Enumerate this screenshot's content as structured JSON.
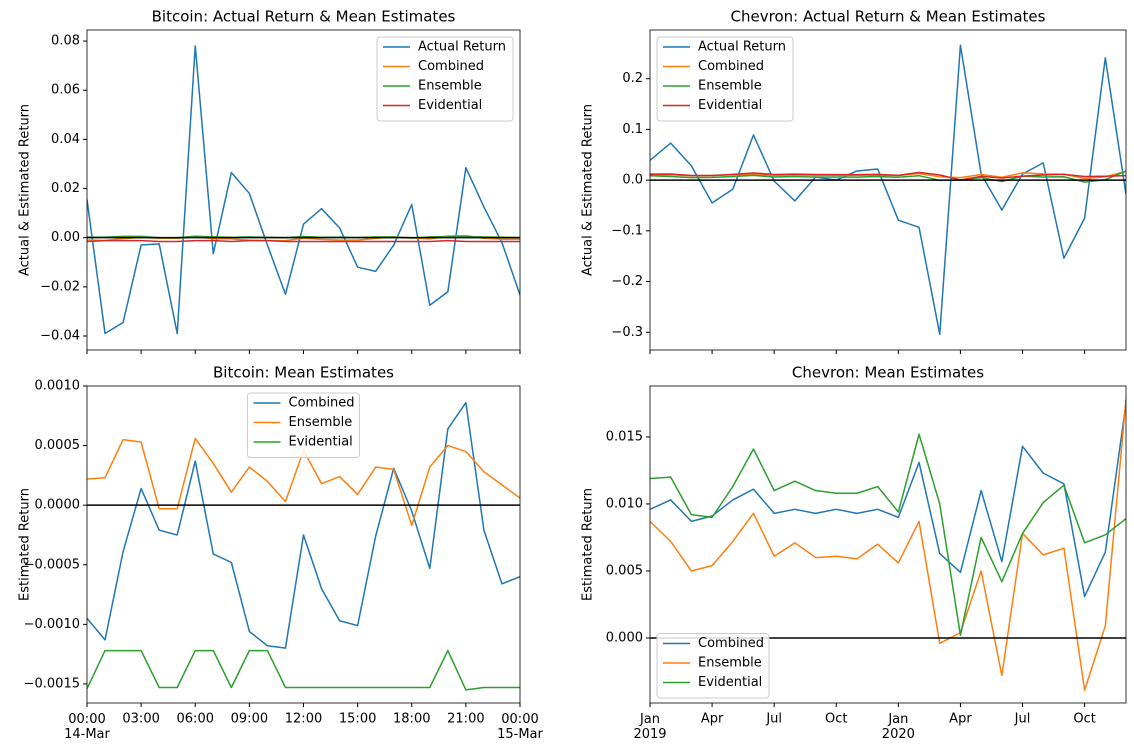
{
  "chart_data": [
    {
      "type": "line",
      "title": "Bitcoin: Actual Return & Mean Estimates",
      "ylabel": "Actual & Estimated Return",
      "x": [
        "03-14T00:00",
        "03-14T01:00",
        "03-14T02:00",
        "03-14T03:00",
        "03-14T04:00",
        "03-14T05:00",
        "03-14T06:00",
        "03-14T07:00",
        "03-14T08:00",
        "03-14T09:00",
        "03-14T10:00",
        "03-14T11:00",
        "03-14T12:00",
        "03-14T13:00",
        "03-14T14:00",
        "03-14T15:00",
        "03-14T16:00",
        "03-14T17:00",
        "03-14T18:00",
        "03-14T19:00",
        "03-14T20:00",
        "03-14T21:00",
        "03-14T22:00",
        "03-14T23:00",
        "03-15T00:00"
      ],
      "xlim": [
        "03-14T00:00",
        "03-15T00:00"
      ],
      "series": [
        {
          "name": "Actual Return",
          "color": "#1f77b4",
          "values": [
            0.0155,
            -0.039,
            -0.0345,
            -0.003,
            -0.0025,
            -0.039,
            0.078,
            -0.0065,
            0.0265,
            0.018,
            -0.003,
            -0.023,
            0.0055,
            0.0118,
            0.004,
            -0.012,
            -0.0137,
            -0.003,
            0.0135,
            -0.0275,
            -0.022,
            0.0285,
            0.0125,
            -0.002,
            -0.0233
          ]
        },
        {
          "name": "Combined",
          "color": "#ff7f0e",
          "values": [
            -0.00095,
            -0.00113,
            -0.00039,
            0.00014,
            -0.00021,
            -0.00025,
            0.00037,
            -0.00041,
            -0.00048,
            -0.00106,
            -0.00118,
            -0.0012,
            -0.00025,
            -0.0007,
            -0.00097,
            -0.00101,
            -0.00026,
            0.00031,
            -5e-05,
            -0.00053,
            0.00064,
            0.00086,
            -0.00021,
            -0.00066,
            -0.0006
          ]
        },
        {
          "name": "Ensemble",
          "color": "#2ca02c",
          "values": [
            0.00022,
            0.00023,
            0.00055,
            0.00053,
            -3e-05,
            -3e-05,
            0.00056,
            0.00035,
            0.00011,
            0.00032,
            0.0002,
            3e-05,
            0.00046,
            0.00018,
            0.00024,
            9e-05,
            0.00032,
            0.0003,
            -0.00017,
            0.00032,
            0.0005,
            0.00045,
            0.00028,
            0.00017,
            6e-05
          ]
        },
        {
          "name": "Evidential",
          "color": "#d62728",
          "values": [
            -0.00154,
            -0.00122,
            -0.00122,
            -0.00122,
            -0.00153,
            -0.00153,
            -0.00122,
            -0.00122,
            -0.00153,
            -0.00122,
            -0.00122,
            -0.00153,
            -0.00153,
            -0.00153,
            -0.00153,
            -0.00153,
            -0.00153,
            -0.00153,
            -0.00153,
            -0.00153,
            -0.00122,
            -0.00155,
            -0.00153,
            -0.00153,
            -0.00153
          ]
        }
      ],
      "ylim": [
        -0.0457,
        0.0845
      ],
      "yticks": [
        {
          "value": -0.04,
          "label": "−0.04"
        },
        {
          "value": -0.02,
          "label": "−0.02"
        },
        {
          "value": 0,
          "label": "0.00"
        },
        0.02,
        0.04,
        0.06,
        0.08
      ],
      "zero_line": true,
      "legend": "upper right"
    },
    {
      "type": "line",
      "title": "Chevron: Actual Return & Mean Estimates",
      "ylabel": "Actual & Estimated Return",
      "x": [
        "2019-01",
        "2019-02",
        "2019-03",
        "2019-04",
        "2019-05",
        "2019-06",
        "2019-07",
        "2019-08",
        "2019-09",
        "2019-10",
        "2019-11",
        "2019-12",
        "2020-01",
        "2020-02",
        "2020-03",
        "2020-04",
        "2020-05",
        "2020-06",
        "2020-07",
        "2020-08",
        "2020-09",
        "2020-10",
        "2020-11",
        "2020-12"
      ],
      "xlim": [
        "2019-01",
        "2020-12"
      ],
      "series": [
        {
          "name": "Actual Return",
          "color": "#1f77b4",
          "values": [
            0.039,
            0.073,
            0.028,
            -0.045,
            -0.018,
            0.089,
            -0.002,
            -0.041,
            0.006,
            0.0,
            0.018,
            0.022,
            -0.079,
            -0.093,
            -0.304,
            0.266,
            0.012,
            -0.059,
            0.012,
            0.034,
            -0.154,
            -0.075,
            0.241,
            -0.028
          ]
        },
        {
          "name": "Combined",
          "color": "#ff7f0e",
          "values": [
            0.0096,
            0.0103,
            0.0087,
            0.0091,
            0.0103,
            0.0111,
            0.0093,
            0.0096,
            0.0093,
            0.0096,
            0.0093,
            0.0096,
            0.009,
            0.0131,
            0.0063,
            0.0049,
            0.011,
            0.0057,
            0.0143,
            0.0123,
            0.0115,
            0.0031,
            0.0064,
            0.0175
          ]
        },
        {
          "name": "Ensemble",
          "color": "#2ca02c",
          "values": [
            0.0087,
            0.0072,
            0.005,
            0.0054,
            0.0072,
            0.0093,
            0.0061,
            0.0071,
            0.006,
            0.0061,
            0.0059,
            0.007,
            0.0056,
            0.0087,
            -0.0004,
            0.0004,
            0.005,
            -0.0028,
            0.0078,
            0.0062,
            0.0067,
            -0.0039,
            0.0009,
            0.0178
          ]
        },
        {
          "name": "Evidential",
          "color": "#d62728",
          "values": [
            0.0119,
            0.012,
            0.0092,
            0.009,
            0.0113,
            0.0141,
            0.011,
            0.0117,
            0.011,
            0.0108,
            0.0108,
            0.0113,
            0.0094,
            0.0152,
            0.01,
            0.0002,
            0.0075,
            0.0042,
            0.0078,
            0.0101,
            0.0114,
            0.0071,
            0.0077,
            0.0089
          ]
        }
      ],
      "ylim": [
        -0.335,
        0.296
      ],
      "yticks": [
        {
          "value": -0.3,
          "label": "−0.3"
        },
        {
          "value": -0.2,
          "label": "−0.2"
        },
        {
          "value": -0.1,
          "label": "−0.1"
        },
        {
          "value": 0,
          "label": "0.0"
        },
        0.1,
        0.2
      ],
      "zero_line": true,
      "legend": "upper left"
    },
    {
      "type": "line",
      "title": "Bitcoin: Mean Estimates",
      "ylabel": "Estimated Return",
      "x": [
        "03-14T00:00",
        "03-14T01:00",
        "03-14T02:00",
        "03-14T03:00",
        "03-14T04:00",
        "03-14T05:00",
        "03-14T06:00",
        "03-14T07:00",
        "03-14T08:00",
        "03-14T09:00",
        "03-14T10:00",
        "03-14T11:00",
        "03-14T12:00",
        "03-14T13:00",
        "03-14T14:00",
        "03-14T15:00",
        "03-14T16:00",
        "03-14T17:00",
        "03-14T18:00",
        "03-14T19:00",
        "03-14T20:00",
        "03-14T21:00",
        "03-14T22:00",
        "03-14T23:00",
        "03-15T00:00"
      ],
      "xlim": [
        "03-14T00:00",
        "03-15T00:00"
      ],
      "xticks": [
        {
          "value": "03-14T00:00",
          "label": "00:00\n14-Mar"
        },
        {
          "value": "03-14T03:00",
          "label": "03:00"
        },
        {
          "value": "03-14T06:00",
          "label": "06:00"
        },
        {
          "value": "03-14T09:00",
          "label": "09:00"
        },
        {
          "value": "03-14T12:00",
          "label": "12:00"
        },
        {
          "value": "03-14T15:00",
          "label": "15:00"
        },
        {
          "value": "03-14T18:00",
          "label": "18:00"
        },
        {
          "value": "03-14T21:00",
          "label": "21:00"
        },
        {
          "value": "03-15T00:00",
          "label": "00:00\n15-Mar"
        }
      ],
      "series": [
        {
          "name": "Combined",
          "color": "#1f77b4",
          "values": [
            -0.00095,
            -0.00113,
            -0.00039,
            0.00014,
            -0.00021,
            -0.00025,
            0.00037,
            -0.00041,
            -0.00048,
            -0.00106,
            -0.00118,
            -0.0012,
            -0.00025,
            -0.0007,
            -0.00097,
            -0.00101,
            -0.00026,
            0.00031,
            -5e-05,
            -0.00053,
            0.00064,
            0.00086,
            -0.00021,
            -0.00066,
            -0.0006
          ]
        },
        {
          "name": "Ensemble",
          "color": "#ff7f0e",
          "values": [
            0.00022,
            0.00023,
            0.00055,
            0.00053,
            -3e-05,
            -3e-05,
            0.00056,
            0.00035,
            0.00011,
            0.00032,
            0.0002,
            3e-05,
            0.00046,
            0.00018,
            0.00024,
            9e-05,
            0.00032,
            0.0003,
            -0.00017,
            0.00032,
            0.0005,
            0.00045,
            0.00028,
            0.00017,
            6e-05
          ]
        },
        {
          "name": "Evidential",
          "color": "#2ca02c",
          "values": [
            -0.00154,
            -0.00122,
            -0.00122,
            -0.00122,
            -0.00153,
            -0.00153,
            -0.00122,
            -0.00122,
            -0.00153,
            -0.00122,
            -0.00122,
            -0.00153,
            -0.00153,
            -0.00153,
            -0.00153,
            -0.00153,
            -0.00153,
            -0.00153,
            -0.00153,
            -0.00153,
            -0.00122,
            -0.00155,
            -0.00153,
            -0.00153,
            -0.00153
          ]
        }
      ],
      "ylim": [
        -0.00166,
        0.001
      ],
      "yticks": [
        {
          "value": -0.0015,
          "label": "−0.0015"
        },
        {
          "value": -0.001,
          "label": "−0.0010"
        },
        {
          "value": -0.0005,
          "label": "−0.0005"
        },
        {
          "value": 0,
          "label": "0.0000"
        },
        0.0005,
        {
          "value": 0.001,
          "label": "0.0010"
        }
      ],
      "zero_line": true,
      "legend": "upper center"
    },
    {
      "type": "line",
      "title": "Chevron: Mean Estimates",
      "ylabel": "Estimated Return",
      "x": [
        "2019-01",
        "2019-02",
        "2019-03",
        "2019-04",
        "2019-05",
        "2019-06",
        "2019-07",
        "2019-08",
        "2019-09",
        "2019-10",
        "2019-11",
        "2019-12",
        "2020-01",
        "2020-02",
        "2020-03",
        "2020-04",
        "2020-05",
        "2020-06",
        "2020-07",
        "2020-08",
        "2020-09",
        "2020-10",
        "2020-11",
        "2020-12"
      ],
      "xlim": [
        "2019-01",
        "2020-12"
      ],
      "xticks": [
        {
          "value": "2019-01",
          "label": "Jan\n2019"
        },
        {
          "value": "2019-04",
          "label": "Apr"
        },
        {
          "value": "2019-07",
          "label": "Jul"
        },
        {
          "value": "2019-10",
          "label": "Oct"
        },
        {
          "value": "2020-01",
          "label": "Jan\n2020"
        },
        {
          "value": "2020-04",
          "label": "Apr"
        },
        {
          "value": "2020-07",
          "label": "Jul"
        },
        {
          "value": "2020-10",
          "label": "Oct"
        }
      ],
      "series": [
        {
          "name": "Combined",
          "color": "#1f77b4",
          "values": [
            0.0096,
            0.0103,
            0.0087,
            0.0091,
            0.0103,
            0.0111,
            0.0093,
            0.0096,
            0.0093,
            0.0096,
            0.0093,
            0.0096,
            0.009,
            0.0131,
            0.0063,
            0.0049,
            0.011,
            0.0057,
            0.0143,
            0.0123,
            0.0115,
            0.0031,
            0.0064,
            0.0175
          ]
        },
        {
          "name": "Ensemble",
          "color": "#ff7f0e",
          "values": [
            0.0087,
            0.0072,
            0.005,
            0.0054,
            0.0072,
            0.0093,
            0.0061,
            0.0071,
            0.006,
            0.0061,
            0.0059,
            0.007,
            0.0056,
            0.0087,
            -0.0004,
            0.0004,
            0.005,
            -0.0028,
            0.0078,
            0.0062,
            0.0067,
            -0.0039,
            0.0009,
            0.0178
          ]
        },
        {
          "name": "Evidential",
          "color": "#2ca02c",
          "values": [
            0.0119,
            0.012,
            0.0092,
            0.009,
            0.0113,
            0.0141,
            0.011,
            0.0117,
            0.011,
            0.0108,
            0.0108,
            0.0113,
            0.0094,
            0.0152,
            0.01,
            0.0002,
            0.0075,
            0.0042,
            0.0078,
            0.0101,
            0.0114,
            0.0071,
            0.0077,
            0.0089
          ]
        }
      ],
      "ylim": [
        -0.00485,
        0.0188
      ],
      "yticks": [
        {
          "value": 0,
          "label": "0.000"
        },
        0.005,
        {
          "value": 0.01,
          "label": "0.010"
        },
        0.015
      ],
      "zero_line": true,
      "legend": "lower left"
    }
  ]
}
